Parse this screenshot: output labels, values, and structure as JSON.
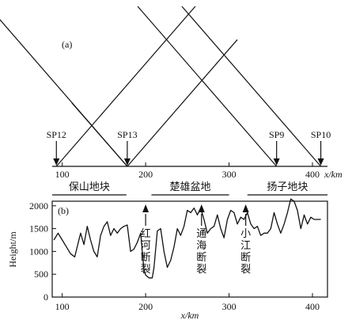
{
  "panel_a": {
    "label": "(a)",
    "axis_unit": "x/km",
    "axis_ticks": [
      "100",
      "200",
      "300",
      "400"
    ],
    "shotpoints": [
      {
        "name": "SP12",
        "x": 93
      },
      {
        "name": "SP13",
        "x": 178
      },
      {
        "name": "SP9",
        "x": 357
      },
      {
        "name": "SP10",
        "x": 410
      }
    ],
    "regions": [
      {
        "name": "保山地块",
        "from": 88,
        "to": 177
      },
      {
        "name": "楚雄盆地",
        "from": 207,
        "to": 300
      },
      {
        "name": "扬子地块",
        "from": 322,
        "to": 418
      }
    ]
  },
  "panel_b": {
    "label": "(b)",
    "faults": [
      {
        "name": "红河断裂",
        "x": 200
      },
      {
        "name": "通海断裂",
        "x": 267
      },
      {
        "name": "小江断裂",
        "x": 320
      }
    ]
  },
  "chart_data": {
    "type": "line",
    "title": "",
    "xlabel": "x/km",
    "ylabel": "Height/m",
    "xlim": [
      88,
      418
    ],
    "ylim": [
      0,
      2100
    ],
    "x_ticks": [
      100,
      200,
      300,
      400
    ],
    "y_ticks": [
      0,
      500,
      1000,
      1500,
      2000
    ],
    "grid": false,
    "series": [
      {
        "x": [
          90,
          95,
          100,
          105,
          110,
          115,
          118,
          122,
          126,
          130,
          134,
          138,
          142,
          146,
          150,
          154,
          158,
          162,
          166,
          170,
          174,
          178,
          182,
          186,
          190,
          194,
          196,
          198,
          200,
          204,
          208,
          210,
          214,
          218,
          222,
          226,
          230,
          234,
          238,
          242,
          246,
          250,
          254,
          258,
          262,
          266,
          270,
          274,
          278,
          282,
          286,
          290,
          294,
          298,
          302,
          306,
          310,
          314,
          318,
          322,
          326,
          330,
          334,
          338,
          342,
          346,
          350,
          354,
          358,
          362,
          366,
          370,
          374,
          378,
          382,
          386,
          390,
          394,
          398,
          402,
          406,
          410
        ],
        "values": [
          1250,
          1400,
          1250,
          1100,
          950,
          880,
          1100,
          1400,
          1150,
          1550,
          1250,
          1000,
          880,
          1350,
          1550,
          1650,
          1350,
          1500,
          1400,
          1500,
          1550,
          1580,
          1000,
          1050,
          1200,
          1400,
          1000,
          600,
          480,
          420,
          420,
          650,
          1450,
          1500,
          1000,
          650,
          800,
          1100,
          1500,
          1350,
          1550,
          1900,
          1850,
          1950,
          1800,
          1950,
          1700,
          1400,
          1500,
          1550,
          1800,
          1500,
          1300,
          1700,
          1900,
          1850,
          1600,
          1750,
          1700,
          1850,
          1600,
          1500,
          1550,
          1350,
          1400,
          1400,
          1500,
          1850,
          1600,
          1400,
          1600,
          1850,
          2150,
          2100,
          1900,
          1500,
          1800,
          1600,
          1750,
          1700,
          1700,
          1700
        ]
      }
    ]
  }
}
